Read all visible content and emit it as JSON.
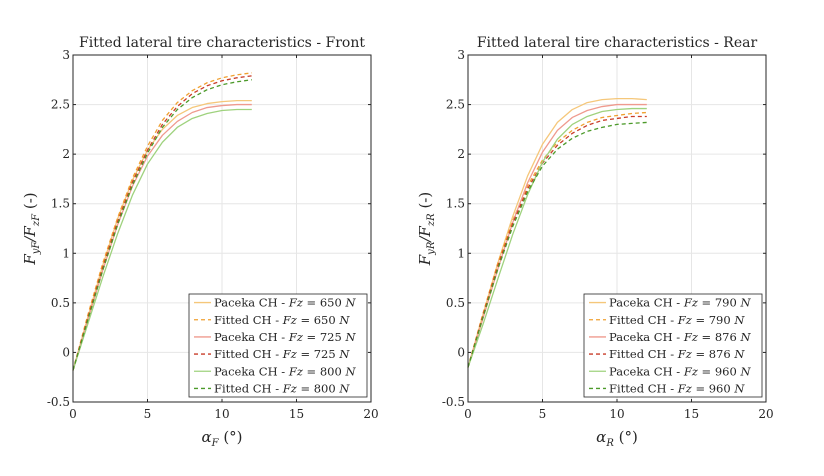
{
  "chart_data": [
    {
      "type": "line",
      "title": "Fitted lateral tire characteristics - Front",
      "xlabel_base": "α",
      "xlabel_sub": "F",
      "xlabel_unit": "(°)",
      "ylabel_num": "F",
      "ylabel_num_sub": "yF",
      "ylabel_den": "F",
      "ylabel_den_sub": "zF",
      "ylabel_unit": "(-)",
      "xlim": [
        0,
        20
      ],
      "ylim": [
        -0.5,
        3
      ],
      "xticks": [
        "0",
        "5",
        "10",
        "15",
        "20"
      ],
      "yticks": [
        "-0.5",
        "0",
        "0.5",
        "1",
        "1.5",
        "2",
        "2.5",
        "3"
      ],
      "grid": true,
      "legend_position": "bottom-right",
      "series": [
        {
          "name": "Paceka CH - Fz = 650 N",
          "legend_model": "Paceka CH - ",
          "legend_var": "Fz",
          "legend_value": "650",
          "legend_unit": "N",
          "style": "solid",
          "color": "#f5c77a",
          "x": [
            0,
            1,
            2,
            3,
            4,
            5,
            6,
            7,
            8,
            9,
            10,
            11,
            12
          ],
          "y": [
            -0.18,
            0.36,
            0.88,
            1.35,
            1.74,
            2.04,
            2.25,
            2.39,
            2.47,
            2.51,
            2.53,
            2.54,
            2.54
          ]
        },
        {
          "name": "Fitted CH - Fz = 650 N",
          "legend_model": "Fitted CH - ",
          "legend_var": "Fz",
          "legend_value": "650",
          "legend_unit": "N",
          "style": "dashed",
          "color": "#f0a030",
          "x": [
            0,
            1,
            2,
            3,
            4,
            5,
            6,
            7,
            8,
            9,
            10,
            11,
            12
          ],
          "y": [
            -0.18,
            0.38,
            0.9,
            1.36,
            1.76,
            2.08,
            2.34,
            2.52,
            2.64,
            2.72,
            2.77,
            2.8,
            2.82
          ]
        },
        {
          "name": "Paceka CH - Fz = 725 N",
          "legend_model": "Paceka CH - ",
          "legend_var": "Fz",
          "legend_value": "725",
          "legend_unit": "N",
          "style": "solid",
          "color": "#ef9a8e",
          "x": [
            0,
            1,
            2,
            3,
            4,
            5,
            6,
            7,
            8,
            9,
            10,
            11,
            12
          ],
          "y": [
            -0.18,
            0.33,
            0.83,
            1.29,
            1.68,
            1.98,
            2.19,
            2.33,
            2.42,
            2.47,
            2.49,
            2.5,
            2.5
          ]
        },
        {
          "name": "Fitted CH - Fz = 725 N",
          "legend_model": "Fitted CH - ",
          "legend_var": "Fz",
          "legend_value": "725",
          "legend_unit": "N",
          "style": "dashed",
          "color": "#c83c28",
          "x": [
            0,
            1,
            2,
            3,
            4,
            5,
            6,
            7,
            8,
            9,
            10,
            11,
            12
          ],
          "y": [
            -0.18,
            0.35,
            0.86,
            1.32,
            1.72,
            2.04,
            2.3,
            2.48,
            2.61,
            2.69,
            2.74,
            2.77,
            2.79
          ]
        },
        {
          "name": "Paceka CH - Fz = 800 N",
          "legend_model": "Paceka CH - ",
          "legend_var": "Fz",
          "legend_value": "800",
          "legend_unit": "N",
          "style": "solid",
          "color": "#9fd27e",
          "x": [
            0,
            1,
            2,
            3,
            4,
            5,
            6,
            7,
            8,
            9,
            10,
            11,
            12
          ],
          "y": [
            -0.18,
            0.29,
            0.76,
            1.2,
            1.59,
            1.9,
            2.12,
            2.27,
            2.36,
            2.41,
            2.44,
            2.45,
            2.45
          ]
        },
        {
          "name": "Fitted CH - Fz = 800 N",
          "legend_model": "Fitted CH - ",
          "legend_var": "Fz",
          "legend_value": "800",
          "legend_unit": "N",
          "style": "dashed",
          "color": "#4c9a2a",
          "x": [
            0,
            1,
            2,
            3,
            4,
            5,
            6,
            7,
            8,
            9,
            10,
            11,
            12
          ],
          "y": [
            -0.18,
            0.33,
            0.83,
            1.29,
            1.69,
            2.01,
            2.27,
            2.45,
            2.57,
            2.65,
            2.7,
            2.73,
            2.75
          ]
        }
      ]
    },
    {
      "type": "line",
      "title": "Fitted lateral tire characteristics - Rear",
      "xlabel_base": "α",
      "xlabel_sub": "R",
      "xlabel_unit": "(°)",
      "ylabel_num": "F",
      "ylabel_num_sub": "yR",
      "ylabel_den": "F",
      "ylabel_den_sub": "zR",
      "ylabel_unit": "(-)",
      "xlim": [
        0,
        20
      ],
      "ylim": [
        -0.5,
        3
      ],
      "xticks": [
        "0",
        "5",
        "10",
        "15",
        "20"
      ],
      "yticks": [
        "-0.5",
        "0",
        "0.5",
        "1",
        "1.5",
        "2",
        "2.5",
        "3"
      ],
      "grid": true,
      "legend_position": "bottom-right",
      "series": [
        {
          "name": "Paceka CH - Fz = 790 N",
          "legend_model": "Paceka CH - ",
          "legend_var": "Fz",
          "legend_value": "790",
          "legend_unit": "N",
          "style": "solid",
          "color": "#f5c77a",
          "x": [
            0,
            1,
            2,
            3,
            4,
            5,
            6,
            7,
            8,
            9,
            10,
            11,
            12
          ],
          "y": [
            -0.15,
            0.38,
            0.9,
            1.37,
            1.78,
            2.1,
            2.32,
            2.45,
            2.52,
            2.55,
            2.56,
            2.56,
            2.55
          ]
        },
        {
          "name": "Fitted CH - Fz = 790 N",
          "legend_model": "Fitted CH - ",
          "legend_var": "Fz",
          "legend_value": "790",
          "legend_unit": "N",
          "style": "dashed",
          "color": "#f0a030",
          "x": [
            0,
            1,
            2,
            3,
            4,
            5,
            6,
            7,
            8,
            9,
            10,
            11,
            12
          ],
          "y": [
            -0.15,
            0.39,
            0.9,
            1.33,
            1.68,
            1.94,
            2.12,
            2.24,
            2.32,
            2.37,
            2.39,
            2.41,
            2.42
          ]
        },
        {
          "name": "Paceka CH - Fz = 876 N",
          "legend_model": "Paceka CH - ",
          "legend_var": "Fz",
          "legend_value": "876",
          "legend_unit": "N",
          "style": "solid",
          "color": "#ef9a8e",
          "x": [
            0,
            1,
            2,
            3,
            4,
            5,
            6,
            7,
            8,
            9,
            10,
            11,
            12
          ],
          "y": [
            -0.15,
            0.34,
            0.84,
            1.31,
            1.71,
            2.02,
            2.24,
            2.37,
            2.44,
            2.48,
            2.5,
            2.5,
            2.5
          ]
        },
        {
          "name": "Fitted CH - Fz = 876 N",
          "legend_model": "Fitted CH - ",
          "legend_var": "Fz",
          "legend_value": "876",
          "legend_unit": "N",
          "style": "dashed",
          "color": "#c83c28",
          "x": [
            0,
            1,
            2,
            3,
            4,
            5,
            6,
            7,
            8,
            9,
            10,
            11,
            12
          ],
          "y": [
            -0.15,
            0.37,
            0.87,
            1.3,
            1.65,
            1.91,
            2.09,
            2.21,
            2.29,
            2.34,
            2.36,
            2.38,
            2.38
          ]
        },
        {
          "name": "Paceka CH - Fz = 960 N",
          "legend_model": "Paceka CH - ",
          "legend_var": "Fz",
          "legend_value": "960",
          "legend_unit": "N",
          "style": "solid",
          "color": "#9fd27e",
          "x": [
            0,
            1,
            2,
            3,
            4,
            5,
            6,
            7,
            8,
            9,
            10,
            11,
            12
          ],
          "y": [
            -0.15,
            0.28,
            0.74,
            1.19,
            1.59,
            1.92,
            2.15,
            2.3,
            2.38,
            2.43,
            2.45,
            2.46,
            2.46
          ]
        },
        {
          "name": "Fitted CH - Fz = 960 N",
          "legend_model": "Fitted CH - ",
          "legend_var": "Fz",
          "legend_value": "960",
          "legend_unit": "N",
          "style": "dashed",
          "color": "#4c9a2a",
          "x": [
            0,
            1,
            2,
            3,
            4,
            5,
            6,
            7,
            8,
            9,
            10,
            11,
            12
          ],
          "y": [
            -0.15,
            0.35,
            0.84,
            1.27,
            1.62,
            1.88,
            2.05,
            2.16,
            2.23,
            2.27,
            2.3,
            2.31,
            2.32
          ]
        }
      ]
    }
  ]
}
